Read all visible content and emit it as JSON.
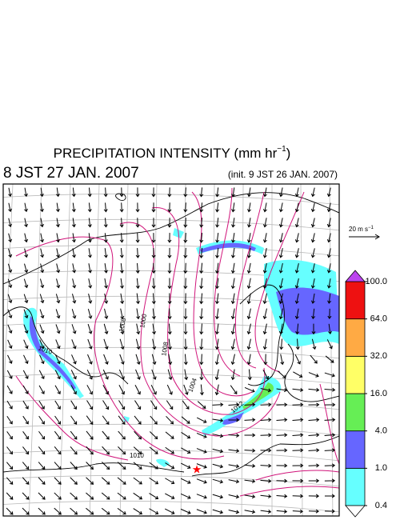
{
  "header": {
    "title": "PRECIPITATION INTENSITY (mm hr",
    "title_superscript": "−1",
    "title_end": ")",
    "valid_time": "8 JST 27 JAN. 2007",
    "init_time": "(init. 9 JST 26 JAN. 2007)"
  },
  "wind_scale": {
    "label": "20 m s",
    "label_superscript": "−1"
  },
  "contour_labels": [
    "1000",
    "1004",
    "1008",
    "1008",
    "1010",
    "1010",
    "1012"
  ],
  "colorbar": {
    "levels": [
      {
        "value": 0.4,
        "label": "0.4"
      },
      {
        "value": 1.0,
        "label": "1.0"
      },
      {
        "value": 4.0,
        "label": "4.0"
      },
      {
        "value": 16.0,
        "label": "16.0"
      },
      {
        "value": 32.0,
        "label": "32.0"
      },
      {
        "value": 64.0,
        "label": "64.0"
      },
      {
        "value": 100.0,
        "label": "100.0"
      }
    ],
    "colors": [
      "#66ffff",
      "#6666ff",
      "#66ee55",
      "#ffff66",
      "#ffaa44",
      "#ee1111"
    ],
    "under_color": "#ffffff",
    "over_color": "#bb44ee"
  }
}
